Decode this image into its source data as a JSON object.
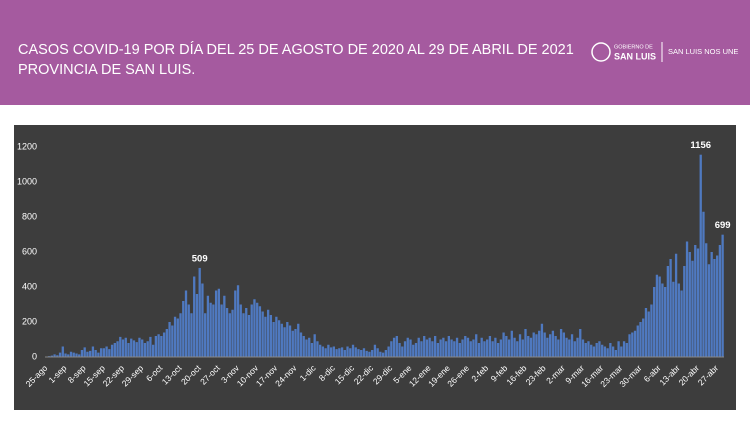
{
  "chart_data": {
    "type": "bar",
    "title": "CASOS COVID-19 POR DÍA DEL 25 DE AGOSTO DE 2020 AL 29 DE ABRIL DE 2021",
    "subtitle": "PROVINCIA DE SAN LUIS.",
    "color": "#4f79c0",
    "ylim": [
      0,
      1200
    ],
    "yticks": [
      0,
      200,
      400,
      600,
      800,
      1000,
      1200
    ],
    "categories": [
      "25-ago",
      null,
      null,
      null,
      null,
      null,
      null,
      "1-sep",
      null,
      null,
      null,
      null,
      null,
      null,
      "8-sep",
      null,
      null,
      null,
      null,
      null,
      null,
      "15-sep",
      null,
      null,
      null,
      null,
      null,
      null,
      "22-sep",
      null,
      null,
      null,
      null,
      null,
      null,
      "29-sep",
      null,
      null,
      null,
      null,
      null,
      null,
      "6-oct",
      null,
      null,
      null,
      null,
      null,
      null,
      "13-oct",
      null,
      null,
      null,
      null,
      null,
      null,
      "20-oct",
      null,
      null,
      null,
      null,
      null,
      null,
      "27-oct",
      null,
      null,
      null,
      null,
      null,
      null,
      "3-nov",
      null,
      null,
      null,
      null,
      null,
      null,
      "10-nov",
      null,
      null,
      null,
      null,
      null,
      null,
      "17-nov",
      null,
      null,
      null,
      null,
      null,
      null,
      "24-nov",
      null,
      null,
      null,
      null,
      null,
      null,
      "1-dic",
      null,
      null,
      null,
      null,
      null,
      null,
      "8-dic",
      null,
      null,
      null,
      null,
      null,
      null,
      "15-dic",
      null,
      null,
      null,
      null,
      null,
      null,
      "22-dic",
      null,
      null,
      null,
      null,
      null,
      null,
      "29-dic",
      null,
      null,
      null,
      null,
      null,
      null,
      "5-ene",
      null,
      null,
      null,
      null,
      null,
      null,
      "12-ene",
      null,
      null,
      null,
      null,
      null,
      null,
      "19-ene",
      null,
      null,
      null,
      null,
      null,
      null,
      "26-ene",
      null,
      null,
      null,
      null,
      null,
      null,
      "2-feb",
      null,
      null,
      null,
      null,
      null,
      null,
      "9-feb",
      null,
      null,
      null,
      null,
      null,
      null,
      "16-feb",
      null,
      null,
      null,
      null,
      null,
      null,
      "23-feb",
      null,
      null,
      null,
      null,
      null,
      null,
      "2-mar",
      null,
      null,
      null,
      null,
      null,
      null,
      "9-mar",
      null,
      null,
      null,
      null,
      null,
      null,
      "16-mar",
      null,
      null,
      null,
      null,
      null,
      null,
      "23-mar",
      null,
      null,
      null,
      null,
      null,
      null,
      "30-mar",
      null,
      null,
      null,
      null,
      null,
      null,
      "6-abr",
      null,
      null,
      null,
      null,
      null,
      null,
      "13-abr",
      null,
      null,
      null,
      null,
      null,
      null,
      "20-abr",
      null,
      null,
      null,
      null,
      null,
      null,
      "27-abr",
      null,
      null
    ],
    "values": [
      2,
      5,
      8,
      15,
      10,
      25,
      60,
      20,
      15,
      30,
      25,
      20,
      15,
      40,
      55,
      30,
      35,
      60,
      40,
      25,
      50,
      50,
      60,
      45,
      70,
      80,
      90,
      115,
      100,
      110,
      80,
      105,
      95,
      85,
      110,
      100,
      80,
      90,
      115,
      70,
      120,
      130,
      120,
      140,
      160,
      200,
      180,
      230,
      220,
      250,
      320,
      380,
      300,
      250,
      460,
      360,
      509,
      420,
      250,
      350,
      310,
      300,
      380,
      390,
      300,
      350,
      280,
      250,
      270,
      380,
      410,
      300,
      250,
      280,
      240,
      300,
      330,
      310,
      290,
      260,
      230,
      270,
      240,
      200,
      230,
      210,
      190,
      170,
      200,
      180,
      150,
      160,
      190,
      140,
      120,
      100,
      110,
      80,
      130,
      90,
      70,
      60,
      50,
      70,
      55,
      60,
      45,
      50,
      55,
      40,
      60,
      50,
      70,
      55,
      45,
      40,
      50,
      35,
      30,
      40,
      70,
      50,
      30,
      25,
      40,
      60,
      90,
      110,
      120,
      80,
      60,
      90,
      110,
      100,
      70,
      80,
      110,
      90,
      120,
      100,
      110,
      90,
      120,
      80,
      100,
      110,
      90,
      120,
      100,
      90,
      110,
      80,
      100,
      120,
      110,
      90,
      100,
      130,
      80,
      110,
      90,
      100,
      120,
      90,
      110,
      80,
      100,
      140,
      120,
      100,
      150,
      110,
      90,
      130,
      100,
      160,
      120,
      110,
      140,
      130,
      150,
      190,
      140,
      110,
      130,
      150,
      120,
      100,
      160,
      140,
      110,
      100,
      130,
      90,
      110,
      160,
      100,
      80,
      90,
      70,
      60,
      80,
      90,
      70,
      60,
      50,
      80,
      60,
      40,
      90,
      60,
      90,
      80,
      130,
      140,
      150,
      180,
      200,
      220,
      280,
      260,
      300,
      400,
      470,
      460,
      420,
      400,
      520,
      560,
      430,
      590,
      420,
      380,
      520,
      660,
      600,
      550,
      640,
      620,
      1156,
      830,
      650,
      530,
      600,
      560,
      580,
      640,
      699
    ],
    "value_labels": {
      "56": "509",
      "239": "1156",
      "247": "699"
    }
  },
  "branding": {
    "logo_top": "GOBIERNO DE",
    "logo_main": "SAN LUIS",
    "slogan": "SAN LUIS NOS UNE"
  }
}
